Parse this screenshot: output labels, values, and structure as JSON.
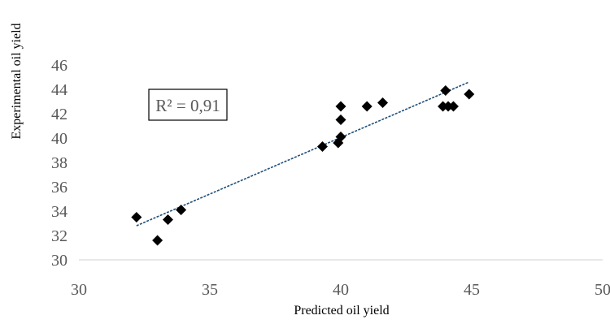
{
  "chart_data": {
    "type": "scatter",
    "title": "",
    "xlabel": "Predicted oil yield",
    "ylabel": "Experimental oil yield",
    "xlim": [
      30,
      50
    ],
    "ylim": [
      30,
      46
    ],
    "x_ticks": [
      "30",
      "35",
      "40",
      "45",
      "50"
    ],
    "y_ticks": [
      "30",
      "32",
      "34",
      "36",
      "38",
      "40",
      "42",
      "44",
      "46"
    ],
    "x_tick_values": [
      30,
      35,
      40,
      45,
      50
    ],
    "y_tick_values": [
      30,
      32,
      34,
      36,
      38,
      40,
      42,
      44,
      46
    ],
    "grid": false,
    "legend": "none",
    "marker": "diamond",
    "marker_color": "#000000",
    "points": [
      {
        "x": 32.2,
        "y": 33.5
      },
      {
        "x": 33.0,
        "y": 31.6
      },
      {
        "x": 33.4,
        "y": 33.3
      },
      {
        "x": 33.9,
        "y": 34.1
      },
      {
        "x": 39.3,
        "y": 39.3
      },
      {
        "x": 39.9,
        "y": 39.6
      },
      {
        "x": 40.0,
        "y": 40.1
      },
      {
        "x": 40.0,
        "y": 41.5
      },
      {
        "x": 40.0,
        "y": 42.6
      },
      {
        "x": 41.0,
        "y": 42.6
      },
      {
        "x": 41.6,
        "y": 42.9
      },
      {
        "x": 43.9,
        "y": 42.6
      },
      {
        "x": 44.0,
        "y": 43.9
      },
      {
        "x": 44.1,
        "y": 42.6
      },
      {
        "x": 44.3,
        "y": 42.6
      },
      {
        "x": 44.9,
        "y": 43.6
      }
    ],
    "trendline": {
      "type": "linear",
      "color": "#1F4E79",
      "x": [
        32.2,
        44.9
      ],
      "y": [
        32.8,
        44.6
      ]
    },
    "annotation": {
      "text": "R² = 0,91"
    }
  }
}
